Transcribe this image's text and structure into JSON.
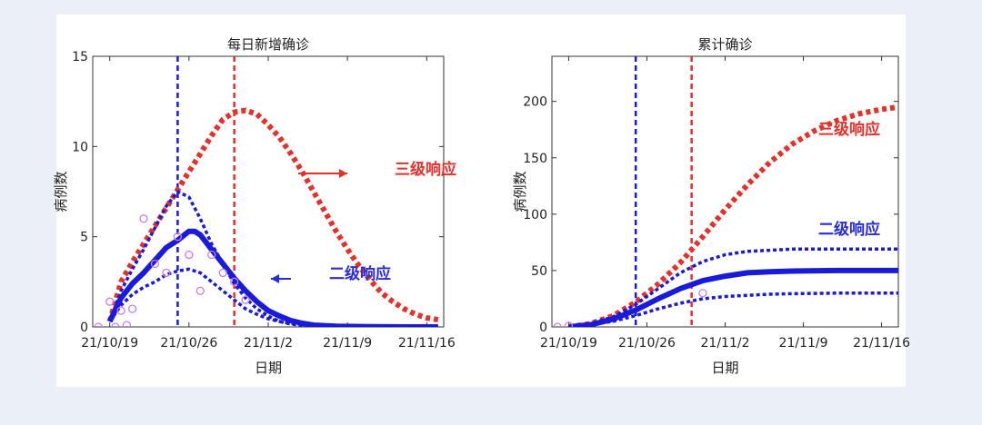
{
  "chart_data": [
    {
      "type": "line",
      "title": "每日新增确诊",
      "xlabel": "日期",
      "ylabel": "病例数",
      "x_ticks": [
        "21/10/19",
        "21/10/26",
        "21/11/2",
        "21/11/9",
        "21/11/16"
      ],
      "x_tick_days": [
        0,
        7,
        14,
        21,
        28
      ],
      "y_ticks": [
        "0",
        "5",
        "10",
        "15"
      ],
      "y_tick_values": [
        0,
        5,
        10,
        15
      ],
      "xlim_days": [
        -1.5,
        29.5
      ],
      "ylim": [
        0,
        15
      ],
      "grid": false,
      "vlines": [
        {
          "day": 6.0,
          "color": "#1a1adb"
        },
        {
          "day": 11.0,
          "color": "#e8302a"
        }
      ],
      "annotations": [
        {
          "text": "三级响应",
          "color": "#e8302a"
        },
        {
          "text": "二级响应",
          "color": "#2a2ae0"
        }
      ],
      "observed_points": [
        [
          -1,
          0
        ],
        [
          0,
          1.4
        ],
        [
          1,
          0.9
        ],
        [
          2,
          1.0
        ],
        [
          3,
          6.0
        ],
        [
          4,
          3.5
        ],
        [
          5,
          3.0
        ],
        [
          6,
          5.0
        ],
        [
          7,
          4.0
        ],
        [
          8,
          2.0
        ],
        [
          9,
          4.0
        ],
        [
          10,
          3.0
        ],
        [
          11,
          2.5
        ],
        [
          12,
          1.5
        ],
        [
          0.5,
          0
        ],
        [
          1.5,
          0.1
        ]
      ],
      "series": [
        {
          "color": "#e8302a",
          "style": "dotted",
          "points": [
            [
              0,
              0.3
            ],
            [
              1,
              2.5
            ],
            [
              2,
              3.6
            ],
            [
              3,
              4.6
            ],
            [
              4,
              5.6
            ],
            [
              5,
              6.6
            ],
            [
              6,
              7.6
            ],
            [
              7,
              8.6
            ],
            [
              8,
              9.6
            ],
            [
              9,
              10.6
            ],
            [
              10,
              11.5
            ],
            [
              11,
              11.9
            ],
            [
              12,
              12.0
            ],
            [
              13,
              11.8
            ],
            [
              14,
              11.2
            ],
            [
              15,
              10.5
            ],
            [
              16,
              9.6
            ],
            [
              17,
              8.6
            ],
            [
              18,
              7.5
            ],
            [
              19,
              6.4
            ],
            [
              20,
              5.3
            ],
            [
              21,
              4.3
            ],
            [
              22,
              3.4
            ],
            [
              23,
              2.6
            ],
            [
              24,
              1.9
            ],
            [
              25,
              1.4
            ],
            [
              26,
              1.0
            ],
            [
              27,
              0.7
            ],
            [
              28,
              0.5
            ],
            [
              29,
              0.4
            ]
          ]
        },
        {
          "color": "#1a1adb",
          "style": "dotted",
          "points": [
            [
              0,
              0.3
            ],
            [
              1,
              2.0
            ],
            [
              2,
              3.2
            ],
            [
              3,
              4.3
            ],
            [
              4,
              5.5
            ],
            [
              5,
              6.7
            ],
            [
              6,
              7.5
            ],
            [
              7,
              7.2
            ],
            [
              8,
              6.0
            ],
            [
              9,
              4.6
            ],
            [
              10,
              3.5
            ],
            [
              11,
              2.4
            ],
            [
              12,
              1.6
            ],
            [
              13,
              1.0
            ],
            [
              14,
              0.6
            ],
            [
              15,
              0.3
            ],
            [
              16,
              0.15
            ],
            [
              18,
              0.05
            ],
            [
              20,
              0.02
            ],
            [
              23,
              0
            ],
            [
              29,
              0
            ]
          ]
        },
        {
          "color": "#1a1adb",
          "style": "solid",
          "points": [
            [
              0,
              0.3
            ],
            [
              1,
              1.6
            ],
            [
              2,
              2.4
            ],
            [
              3,
              3.0
            ],
            [
              4,
              3.7
            ],
            [
              5,
              4.4
            ],
            [
              6,
              4.8
            ],
            [
              7,
              5.3
            ],
            [
              7.5,
              5.3
            ],
            [
              8,
              5.1
            ],
            [
              9,
              4.3
            ],
            [
              10,
              3.5
            ],
            [
              11,
              2.7
            ],
            [
              12,
              2.0
            ],
            [
              13,
              1.4
            ],
            [
              14,
              0.9
            ],
            [
              15,
              0.6
            ],
            [
              16,
              0.35
            ],
            [
              17,
              0.2
            ],
            [
              18,
              0.1
            ],
            [
              20,
              0.04
            ],
            [
              23,
              0.01
            ],
            [
              26,
              0
            ],
            [
              29,
              0
            ]
          ]
        },
        {
          "color": "#1a1adb",
          "style": "dotted",
          "points": [
            [
              0,
              0.3
            ],
            [
              1,
              1.2
            ],
            [
              2,
              1.8
            ],
            [
              3,
              2.2
            ],
            [
              4,
              2.5
            ],
            [
              5,
              2.9
            ],
            [
              6,
              3.1
            ],
            [
              7,
              3.2
            ],
            [
              8,
              3.0
            ],
            [
              9,
              2.5
            ],
            [
              10,
              2.0
            ],
            [
              11,
              1.5
            ],
            [
              12,
              1.0
            ],
            [
              13,
              0.7
            ],
            [
              14,
              0.45
            ],
            [
              15,
              0.3
            ],
            [
              16,
              0.2
            ],
            [
              18,
              0.08
            ],
            [
              20,
              0.03
            ],
            [
              23,
              0
            ],
            [
              29,
              0
            ]
          ]
        }
      ]
    },
    {
      "type": "line",
      "title": "累计确诊",
      "xlabel": "日期",
      "ylabel": "病例数",
      "x_ticks": [
        "21/10/19",
        "21/10/26",
        "21/11/2",
        "21/11/9",
        "21/11/16"
      ],
      "x_tick_days": [
        0,
        7,
        14,
        21,
        28
      ],
      "y_ticks": [
        "0",
        "50",
        "100",
        "150",
        "200"
      ],
      "y_tick_values": [
        0,
        50,
        100,
        150,
        200
      ],
      "xlim_days": [
        -1.5,
        29.5
      ],
      "ylim": [
        0,
        240
      ],
      "grid": false,
      "vlines": [
        {
          "day": 6.0,
          "color": "#1a1adb"
        },
        {
          "day": 11.0,
          "color": "#e8302a"
        }
      ],
      "annotations": [
        {
          "text": "三级响应",
          "color": "#e8302a"
        },
        {
          "text": "二级响应",
          "color": "#2a2ae0"
        }
      ],
      "observed_points": [
        [
          -1,
          0
        ],
        [
          0,
          1
        ],
        [
          12,
          30
        ]
      ],
      "series": [
        {
          "color": "#e8302a",
          "style": "dotted",
          "points": [
            [
              0,
              0
            ],
            [
              2,
              3
            ],
            [
              4,
              10
            ],
            [
              6,
              22
            ],
            [
              8,
              38
            ],
            [
              10,
              57
            ],
            [
              12,
              80
            ],
            [
              14,
              104
            ],
            [
              16,
              126
            ],
            [
              18,
              146
            ],
            [
              20,
              162
            ],
            [
              22,
              174
            ],
            [
              24,
              183
            ],
            [
              26,
              189
            ],
            [
              28,
              193
            ],
            [
              29.5,
              195
            ]
          ]
        },
        {
          "color": "#1a1adb",
          "style": "dotted",
          "points": [
            [
              0,
              0
            ],
            [
              2,
              3
            ],
            [
              4,
              9
            ],
            [
              6,
              20
            ],
            [
              8,
              34
            ],
            [
              10,
              48
            ],
            [
              12,
              58
            ],
            [
              14,
              64
            ],
            [
              16,
              67
            ],
            [
              18,
              68
            ],
            [
              20,
              69
            ],
            [
              22,
              69
            ],
            [
              26,
              69
            ],
            [
              29.5,
              69
            ]
          ]
        },
        {
          "color": "#1a1adb",
          "style": "solid",
          "points": [
            [
              0,
              0
            ],
            [
              2,
              2
            ],
            [
              4,
              7
            ],
            [
              6,
              15
            ],
            [
              8,
              25
            ],
            [
              10,
              34
            ],
            [
              12,
              41
            ],
            [
              14,
              45
            ],
            [
              16,
              48
            ],
            [
              18,
              49
            ],
            [
              20,
              49.5
            ],
            [
              24,
              50
            ],
            [
              29.5,
              50
            ]
          ]
        },
        {
          "color": "#1a1adb",
          "style": "dotted",
          "points": [
            [
              0,
              0
            ],
            [
              2,
              2
            ],
            [
              4,
              5
            ],
            [
              6,
              10
            ],
            [
              8,
              16
            ],
            [
              10,
              21
            ],
            [
              12,
              25
            ],
            [
              14,
              27
            ],
            [
              16,
              28
            ],
            [
              18,
              29
            ],
            [
              20,
              29.5
            ],
            [
              24,
              30
            ],
            [
              29.5,
              30
            ]
          ]
        }
      ]
    }
  ]
}
